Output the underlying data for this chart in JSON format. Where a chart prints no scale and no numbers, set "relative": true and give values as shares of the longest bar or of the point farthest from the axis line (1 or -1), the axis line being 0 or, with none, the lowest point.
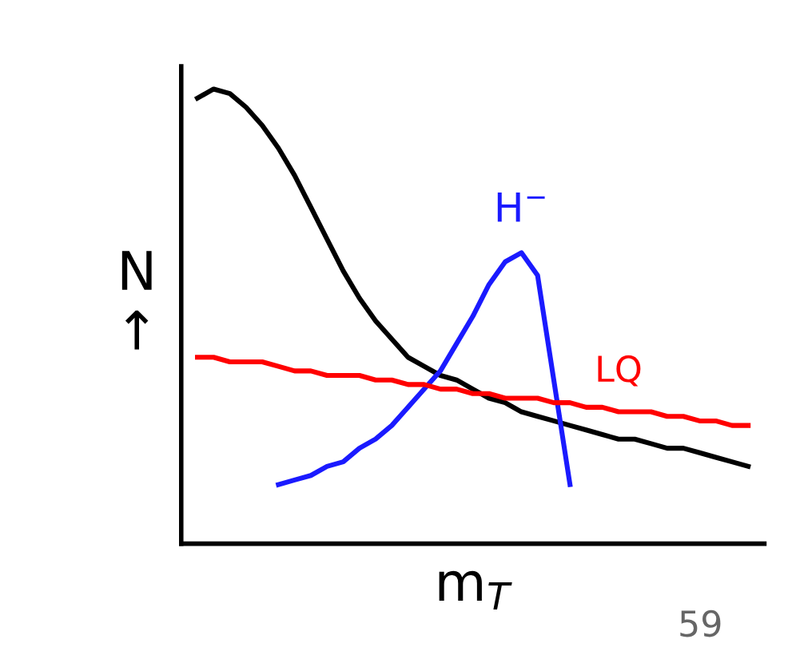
{
  "chart_data": {
    "type": "line",
    "relative": true,
    "xlabel": "m$_{T}$",
    "ylabel": "N\n↑",
    "categories": [
      null,
      null,
      null,
      null,
      null,
      null,
      null,
      null,
      null,
      null,
      null,
      null,
      null,
      null,
      null,
      null,
      null,
      null,
      null,
      null,
      null,
      null,
      null,
      null,
      null,
      null,
      null,
      null,
      null,
      null,
      null,
      null,
      null,
      null,
      null
    ],
    "series": [
      {
        "color": "#000000",
        "values": [
          0.98,
          1.0,
          0.99,
          0.96,
          0.92,
          0.87,
          0.81,
          0.74,
          0.67,
          0.6,
          0.54,
          0.49,
          0.45,
          0.41,
          0.39,
          0.37,
          0.36,
          0.34,
          0.32,
          0.31,
          0.29,
          0.28,
          0.27,
          0.26,
          0.25,
          0.24,
          0.23,
          0.23,
          0.22,
          0.21,
          0.21,
          0.2,
          0.19,
          0.18,
          0.17
        ]
      },
      {
        "name": "H$^{−}$",
        "color": "#1a1aff",
        "values": [
          null,
          null,
          null,
          null,
          null,
          0.13,
          0.14,
          0.15,
          0.17,
          0.18,
          0.21,
          0.23,
          0.26,
          0.3,
          0.34,
          0.38,
          0.44,
          0.5,
          0.57,
          0.62,
          0.64,
          0.59,
          0.36,
          0.13,
          null,
          null,
          null,
          null,
          null,
          null,
          null,
          null,
          null,
          null,
          null
        ]
      },
      {
        "name": "LQ",
        "color": "#ff0000",
        "values": [
          0.41,
          0.41,
          0.4,
          0.4,
          0.4,
          0.39,
          0.38,
          0.38,
          0.37,
          0.37,
          0.37,
          0.36,
          0.36,
          0.35,
          0.35,
          0.34,
          0.34,
          0.33,
          0.33,
          0.32,
          0.32,
          0.32,
          0.31,
          0.31,
          0.3,
          0.3,
          0.29,
          0.29,
          0.29,
          0.28,
          0.28,
          0.27,
          0.27,
          0.26,
          0.26
        ]
      }
    ],
    "annotations": [
      "59"
    ],
    "legend": false,
    "grid": false
  }
}
